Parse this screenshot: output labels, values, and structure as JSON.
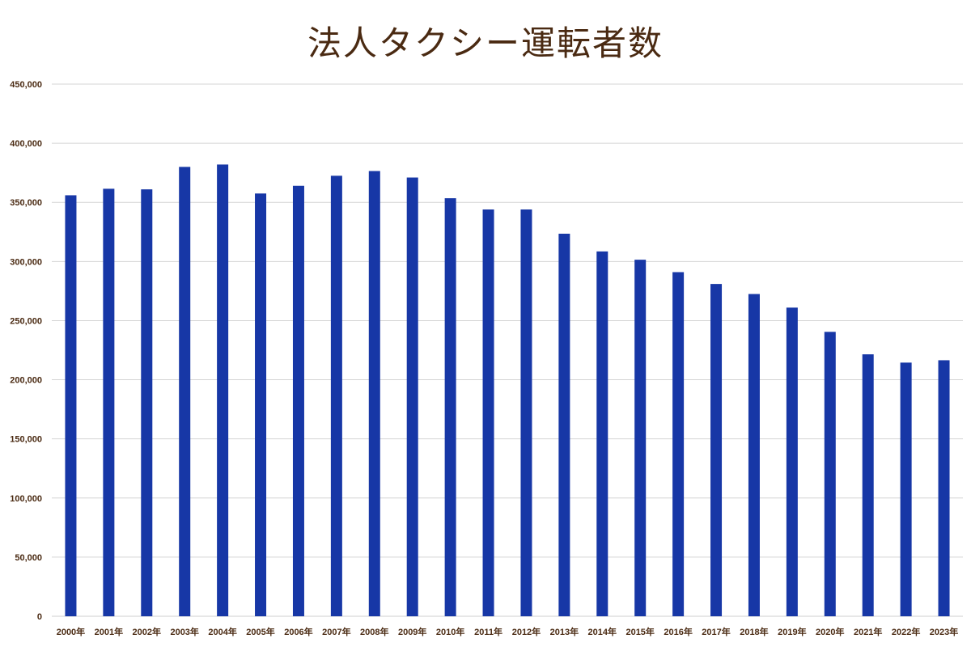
{
  "colors": {
    "bar": "#1737a6",
    "title": "#4a2a12",
    "tick": "#4a2a12",
    "grid": "#d4d4d4",
    "axis": "#cfcfcf"
  },
  "chart_data": {
    "type": "bar",
    "title": "法人タクシー運転者数",
    "xlabel": "",
    "ylabel": "",
    "grid": true,
    "legend": "none",
    "ylim": [
      0,
      450000
    ],
    "yticks": [
      "0",
      "50,000",
      "100,000",
      "150,000",
      "200,000",
      "250,000",
      "300,000",
      "350,000",
      "400,000",
      "450,000"
    ],
    "categories": [
      "2000年",
      "2001年",
      "2002年",
      "2003年",
      "2004年",
      "2005年",
      "2006年",
      "2007年",
      "2008年",
      "2009年",
      "2010年",
      "2011年",
      "2012年",
      "2013年",
      "2014年",
      "2015年",
      "2016年",
      "2017年",
      "2018年",
      "2019年",
      "2020年",
      "2021年",
      "2022年",
      "2023年"
    ],
    "values": [
      356000,
      361500,
      361000,
      380000,
      382000,
      357500,
      364000,
      372500,
      376500,
      371000,
      353500,
      344000,
      344000,
      323500,
      308500,
      301500,
      291000,
      281000,
      272500,
      261000,
      240500,
      221500,
      214500,
      216500
    ]
  }
}
